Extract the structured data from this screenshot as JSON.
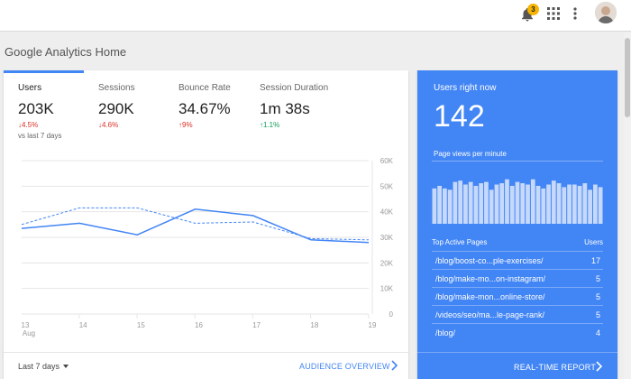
{
  "header": {
    "notifications_count": "3",
    "icons": [
      "bell-icon",
      "apps-grid-icon",
      "more-vert-icon",
      "avatar"
    ]
  },
  "page": {
    "title": "Google Analytics Home"
  },
  "audience": {
    "metrics": [
      {
        "label": "Users",
        "value": "203K",
        "delta": "4.5%",
        "direction": "down",
        "sub": "vs last 7 days"
      },
      {
        "label": "Sessions",
        "value": "290K",
        "delta": "4.6%",
        "direction": "down"
      },
      {
        "label": "Bounce Rate",
        "value": "34.67%",
        "delta": "9%",
        "direction": "up"
      },
      {
        "label": "Session Duration",
        "value": "1m 38s",
        "delta": "1.1%",
        "direction": "up"
      }
    ],
    "date_range": "Last 7 days",
    "link": "AUDIENCE OVERVIEW"
  },
  "chart_data": {
    "type": "line",
    "x": [
      "13",
      "14",
      "15",
      "16",
      "17",
      "18",
      "19"
    ],
    "x_sublabel": "Aug",
    "ylim": [
      0,
      60000
    ],
    "y_ticks": [
      "0",
      "10K",
      "20K",
      "30K",
      "40K",
      "50K",
      "60K"
    ],
    "series": [
      {
        "style": "solid",
        "values": [
          33500,
          35500,
          31000,
          41000,
          38500,
          29000,
          28000
        ]
      },
      {
        "style": "dashed",
        "values": [
          35000,
          41500,
          41500,
          35500,
          36000,
          29500,
          29000
        ]
      }
    ],
    "colors": {
      "line": "#4285f4",
      "grid": "#e6e6e6",
      "axis_text": "#999999"
    },
    "grid": true
  },
  "realtime": {
    "title": "Users right now",
    "value": "142",
    "pageviews_label": "Page views per minute",
    "pageviews_per_minute": [
      27,
      29,
      27,
      26,
      32,
      33,
      30,
      32,
      29,
      31,
      32,
      26,
      30,
      31,
      34,
      29,
      32,
      31,
      30,
      34,
      29,
      27,
      30,
      33,
      31,
      28,
      30,
      30,
      29,
      31,
      26,
      30,
      28
    ],
    "top_pages_header": "Top Active Pages",
    "users_header": "Users",
    "top_pages": [
      {
        "page": "/blog/boost-co...ple-exercises/",
        "users": "17"
      },
      {
        "page": "/blog/make-mo...on-instagram/",
        "users": "5"
      },
      {
        "page": "/blog/make-mon...online-store/",
        "users": "5"
      },
      {
        "page": "/videos/seo/ma...le-page-rank/",
        "users": "5"
      },
      {
        "page": "/blog/",
        "users": "4"
      }
    ],
    "link": "REAL-TIME REPORT",
    "colors": {
      "card": "#4285f4",
      "bar": "#c6d9fb"
    }
  }
}
